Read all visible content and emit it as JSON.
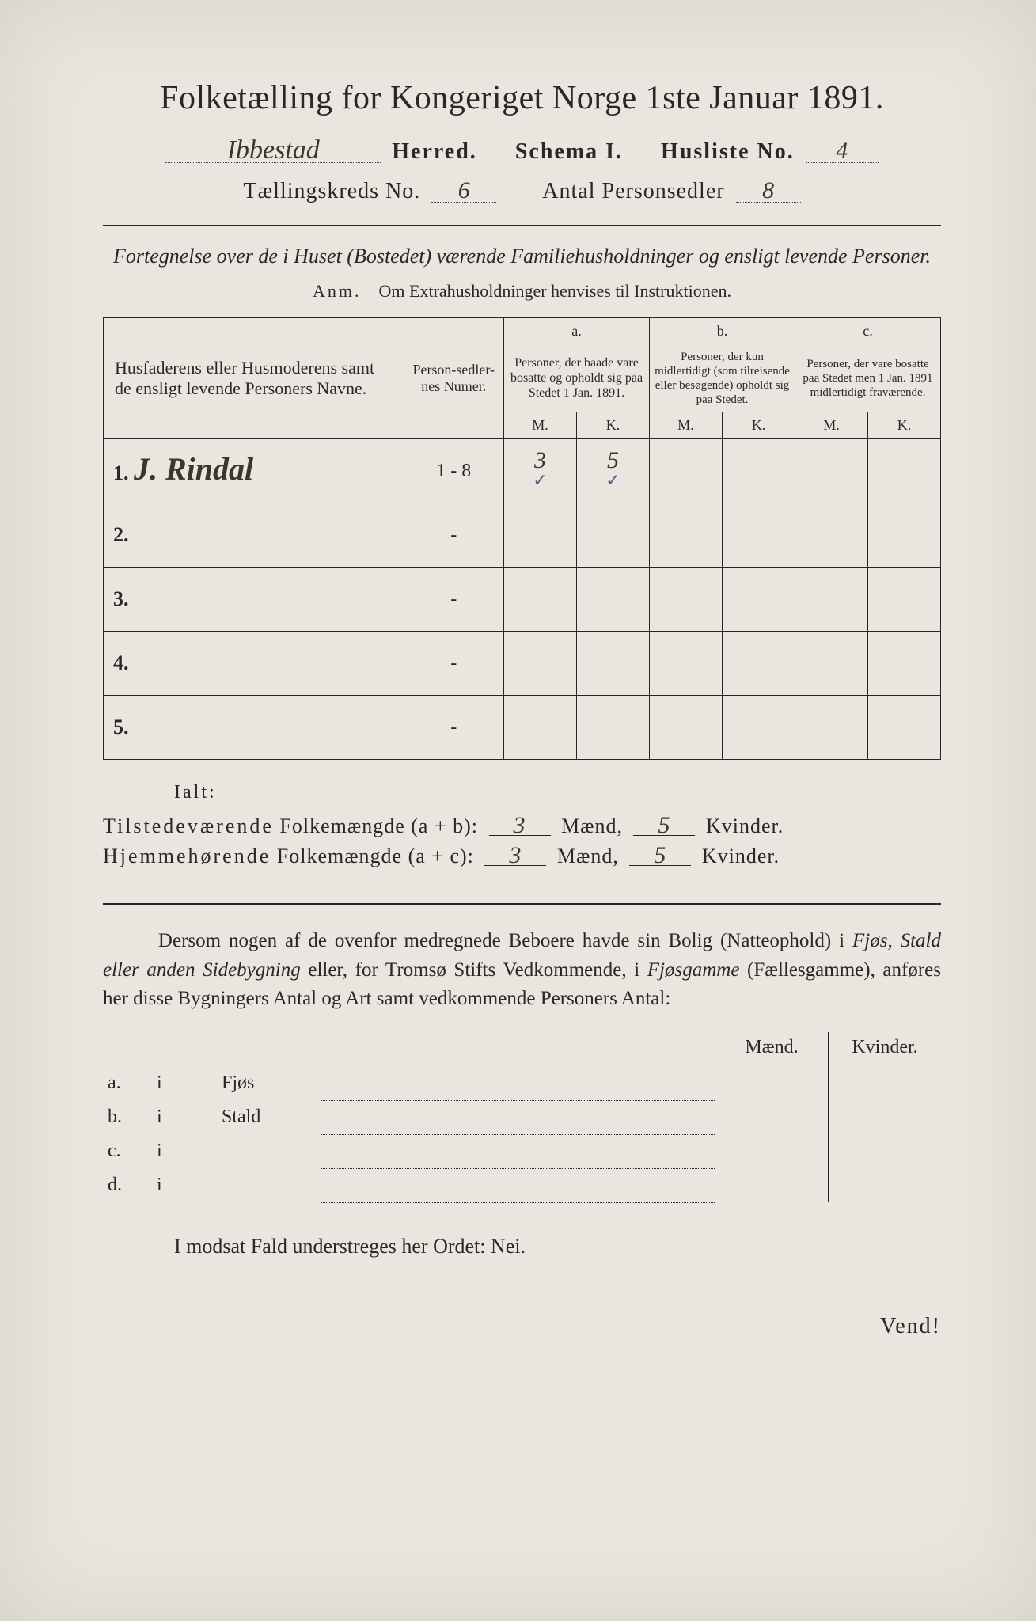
{
  "title": "Folketælling for Kongeriget Norge 1ste Januar 1891.",
  "header": {
    "herred_value": "Ibbestad",
    "herred_label": "Herred.",
    "schema_label": "Schema I.",
    "husliste_label": "Husliste No.",
    "husliste_value": "4",
    "kreds_label": "Tællingskreds No.",
    "kreds_value": "6",
    "antal_label": "Antal Personsedler",
    "antal_value": "8"
  },
  "subtitle": "Fortegnelse over de i Huset (Bostedet) værende Familiehusholdninger og ensligt levende Personer.",
  "anm_label": "Anm.",
  "anm_text": "Om Extrahusholdninger henvises til Instruktionen.",
  "table": {
    "col_names": "Husfaderens eller Husmoderens samt de ensligt levende Personers Navne.",
    "col_nums": "Person-sedler-nes Numer.",
    "group_a": "a.",
    "group_a_text": "Personer, der baade vare bosatte og opholdt sig paa Stedet 1 Jan. 1891.",
    "group_b": "b.",
    "group_b_text": "Personer, der kun midlertidigt (som tilreisende eller besøgende) opholdt sig paa Stedet.",
    "group_c": "c.",
    "group_c_text": "Personer, der vare bosatte paa Stedet men 1 Jan. 1891 midlertidigt fraværende.",
    "m": "M.",
    "k": "K.",
    "rows": [
      {
        "idx": "1.",
        "name": "J. Rindal",
        "nums": "1 - 8",
        "a_m": "3",
        "a_k": "5",
        "check": "✓"
      },
      {
        "idx": "2.",
        "name": "",
        "nums": "-",
        "a_m": "",
        "a_k": "",
        "check": ""
      },
      {
        "idx": "3.",
        "name": "",
        "nums": "-",
        "a_m": "",
        "a_k": "",
        "check": ""
      },
      {
        "idx": "4.",
        "name": "",
        "nums": "-",
        "a_m": "",
        "a_k": "",
        "check": ""
      },
      {
        "idx": "5.",
        "name": "",
        "nums": "-",
        "a_m": "",
        "a_k": "",
        "check": ""
      }
    ]
  },
  "ialt": "Ialt:",
  "sum": {
    "line1_a": "Tilstedeværende",
    "line1_b": "Folkemængde (a + b):",
    "line2_a": "Hjemmehørende",
    "line2_b": "Folkemængde (a + c):",
    "maend": "Mænd,",
    "kvinder": "Kvinder.",
    "ab_m": "3",
    "ab_k": "5",
    "ac_m": "3",
    "ac_k": "5"
  },
  "paragraph": {
    "p1": "Dersom nogen af de ovenfor medregnede Beboere havde sin Bolig (Natteophold) i ",
    "p2": "Fjøs, Stald eller anden Sidebygning",
    "p3": " eller, for Tromsø Stifts Vedkommende, i ",
    "p4": "Fjøsgamme",
    "p5": " (Fællesgamme), anføres her disse Bygningers Antal og Art samt vedkommende Personers Antal:"
  },
  "lower": {
    "maend": "Mænd.",
    "kvinder": "Kvinder.",
    "rows": [
      {
        "lab": "a.",
        "i": "i",
        "type": "Fjøs"
      },
      {
        "lab": "b.",
        "i": "i",
        "type": "Stald"
      },
      {
        "lab": "c.",
        "i": "i",
        "type": ""
      },
      {
        "lab": "d.",
        "i": "i",
        "type": ""
      }
    ]
  },
  "footer": "I modsat Fald understreges her Ordet: Nei.",
  "vend": "Vend!",
  "colors": {
    "paper": "#e8e6de",
    "ink": "#2a2824",
    "handwriting": "#3a362d",
    "check_mark": "#6a4c8a"
  }
}
